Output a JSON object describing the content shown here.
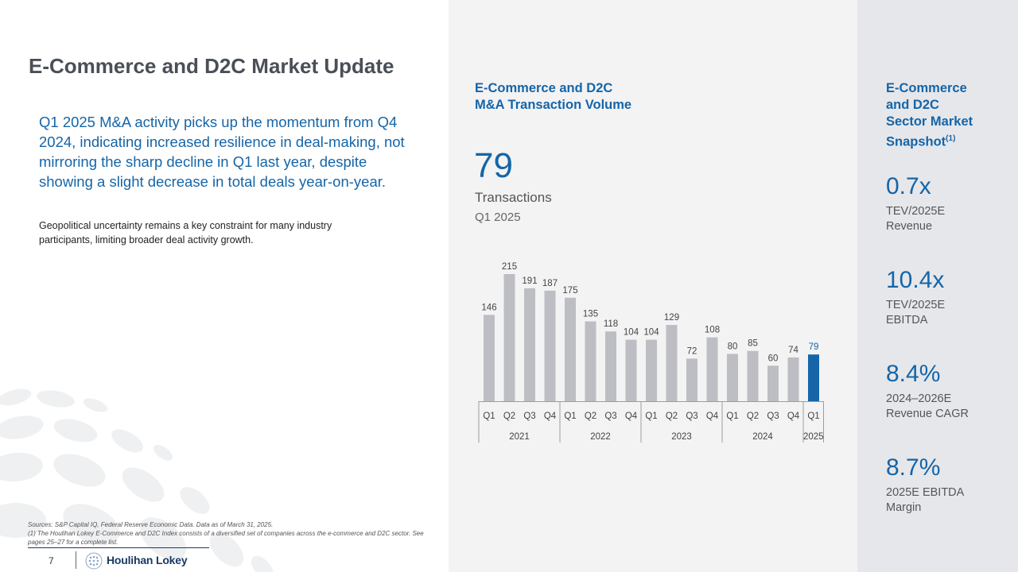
{
  "slide": {
    "title": "E-Commerce and D2C Market Update",
    "lead": "Q1 2025 M&A activity picks up the momentum from Q4 2024, indicating increased resilience in deal-making, not mirroring the sharp decline in Q1 last year, despite showing a slight decrease in total deals year-on-year.",
    "body": "Geopolitical uncertainty remains a key constraint for many industry participants, limiting broader deal activity growth.",
    "footnote_sources": "Sources: S&P Capital IQ, Federal Reserve Economic Data. Data as of March 31, 2025.",
    "footnote_index": "(1) The Houlihan Lokey E-Commerce and D2C Index consists of a diversified set of companies across the e-commerce and D2C sector. See pages 25–27 for a complete list.",
    "page_number": "7",
    "logo_text": "Houlihan Lokey"
  },
  "volume": {
    "title_line1": "E-Commerce and D2C",
    "title_line2": "M&A Transaction Volume",
    "big_number": "79",
    "big_label": "Transactions",
    "big_sub": "Q1 2025"
  },
  "chart_data": {
    "type": "bar",
    "title": "E-Commerce and D2C M&A Transaction Volume",
    "categories": [
      "Q1",
      "Q2",
      "Q3",
      "Q4",
      "Q1",
      "Q2",
      "Q3",
      "Q4",
      "Q1",
      "Q2",
      "Q3",
      "Q4",
      "Q1",
      "Q2",
      "Q3",
      "Q4",
      "Q1"
    ],
    "groups": [
      {
        "label": "2021",
        "count": 4
      },
      {
        "label": "2022",
        "count": 4
      },
      {
        "label": "2023",
        "count": 4
      },
      {
        "label": "2024",
        "count": 4
      },
      {
        "label": "2025",
        "count": 1
      }
    ],
    "values": [
      146,
      215,
      191,
      187,
      175,
      135,
      118,
      104,
      104,
      129,
      72,
      108,
      80,
      85,
      60,
      74,
      79
    ],
    "highlight_index": 16,
    "ylim": [
      0,
      215
    ],
    "grid": false,
    "colors": {
      "bar": "#bcbec3",
      "highlight": "#1565a8",
      "label": "#444444",
      "highlight_label": "#1565a8"
    }
  },
  "snapshot": {
    "title_lines": [
      "E-Commerce",
      "and D2C",
      "Sector Market"
    ],
    "title_last": "Snapshot",
    "title_sup": "(1)",
    "metrics": [
      {
        "value": "0.7x",
        "label_line1": "TEV/2025E",
        "label_line2": "Revenue"
      },
      {
        "value": "10.4x",
        "label_line1": "TEV/2025E",
        "label_line2": "EBITDA"
      },
      {
        "value": "8.4%",
        "label_line1": "2024–2026E",
        "label_line2": "Revenue CAGR"
      },
      {
        "value": "8.7%",
        "label_line1": "2025E EBITDA",
        "label_line2": "Margin"
      }
    ]
  }
}
